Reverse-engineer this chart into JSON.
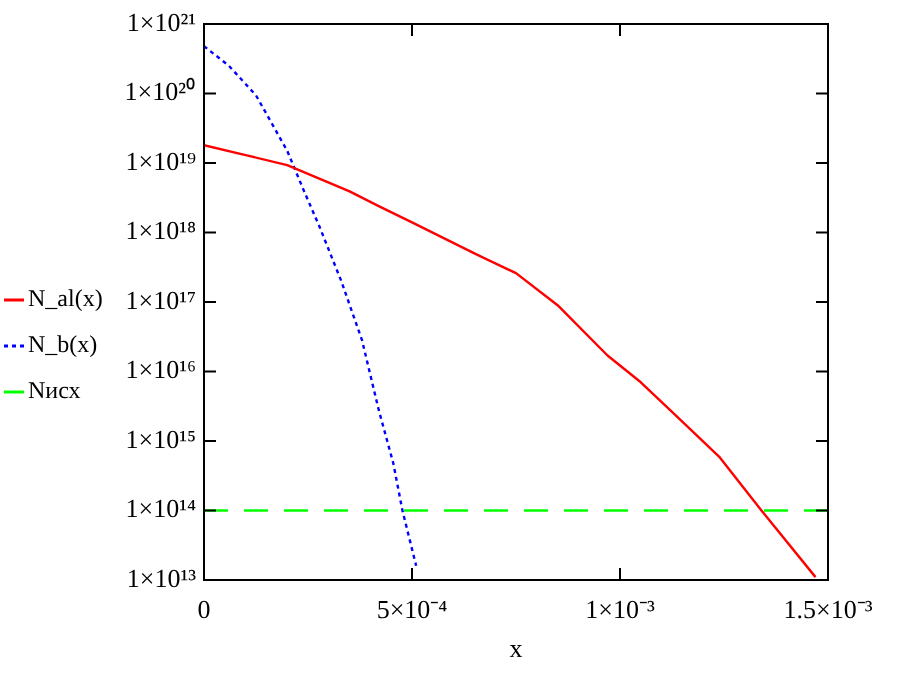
{
  "chart_data": {
    "type": "line",
    "xlabel": "x",
    "log": "y",
    "grid": false,
    "legend": "left",
    "xlim": [
      0,
      0.0015
    ],
    "xticks": [
      0,
      {
        "value": 0.0005,
        "label": "5×10⁻⁴"
      },
      {
        "value": 0.001,
        "label": "1×10⁻³"
      },
      {
        "value": 0.0015,
        "label": "1.5×10⁻³"
      }
    ],
    "ylim": [
      10000000000000.0,
      1e+21
    ],
    "yticks": [
      {
        "value": 10000000000000.0,
        "label": "1×10¹³"
      },
      {
        "value": 100000000000000.0,
        "label": "1×10¹⁴"
      },
      {
        "value": 1000000000000000.0,
        "label": "1×10¹⁵"
      },
      {
        "value": 1e+16,
        "label": "1×10¹⁶"
      },
      {
        "value": 1e+17,
        "label": "1×10¹⁷"
      },
      {
        "value": 1e+18,
        "label": "1×10¹⁸"
      },
      {
        "value": 1e+19,
        "label": "1×10¹⁹"
      },
      {
        "value": 1e+20,
        "label": "1×10²⁰"
      },
      {
        "value": 1e+21,
        "label": "1×10²¹"
      }
    ],
    "series": [
      {
        "name": "N_al(x)",
        "color": "#ff0000",
        "line_style": "solid",
        "x": [
          0,
          0.0001,
          0.0002,
          0.00035,
          0.00042,
          0.0005,
          0.00065,
          0.00075,
          0.00085,
          0.00097,
          0.00105,
          0.00112,
          0.00124,
          0.00134,
          0.00147
        ],
        "values": [
          1.8e+19,
          1.3e+19,
          9.3e+18,
          3.9e+18,
          2.4e+18,
          1.4e+18,
          5e+17,
          2.6e+17,
          9e+16,
          1.7e+16,
          7000000000000000.0,
          2800000000000000.0,
          580000000000000.0,
          100000000000000.0,
          11000000000000.0
        ]
      },
      {
        "name": "N_b(x)",
        "color": "#0000ff",
        "line_style": "dotted",
        "x": [
          0,
          6e-05,
          0.000125,
          0.0002,
          0.00024,
          0.000278,
          0.00033,
          0.00038,
          0.00042,
          0.000455,
          0.000477,
          0.00051
        ],
        "values": [
          4.8e+20,
          2.5e+20,
          9.4e+19,
          1.5e+19,
          4e+18,
          1.2e+18,
          2e+17,
          2.8e+16,
          2800000000000000.0,
          480000000000000.0,
          100000000000000.0,
          16000000000000.0
        ]
      },
      {
        "name": "Nисх",
        "color": "#00ff00",
        "line_style": "dashed",
        "x": [
          0,
          0.0015
        ],
        "values": [
          100000000000000.0,
          100000000000000.0
        ]
      }
    ]
  }
}
